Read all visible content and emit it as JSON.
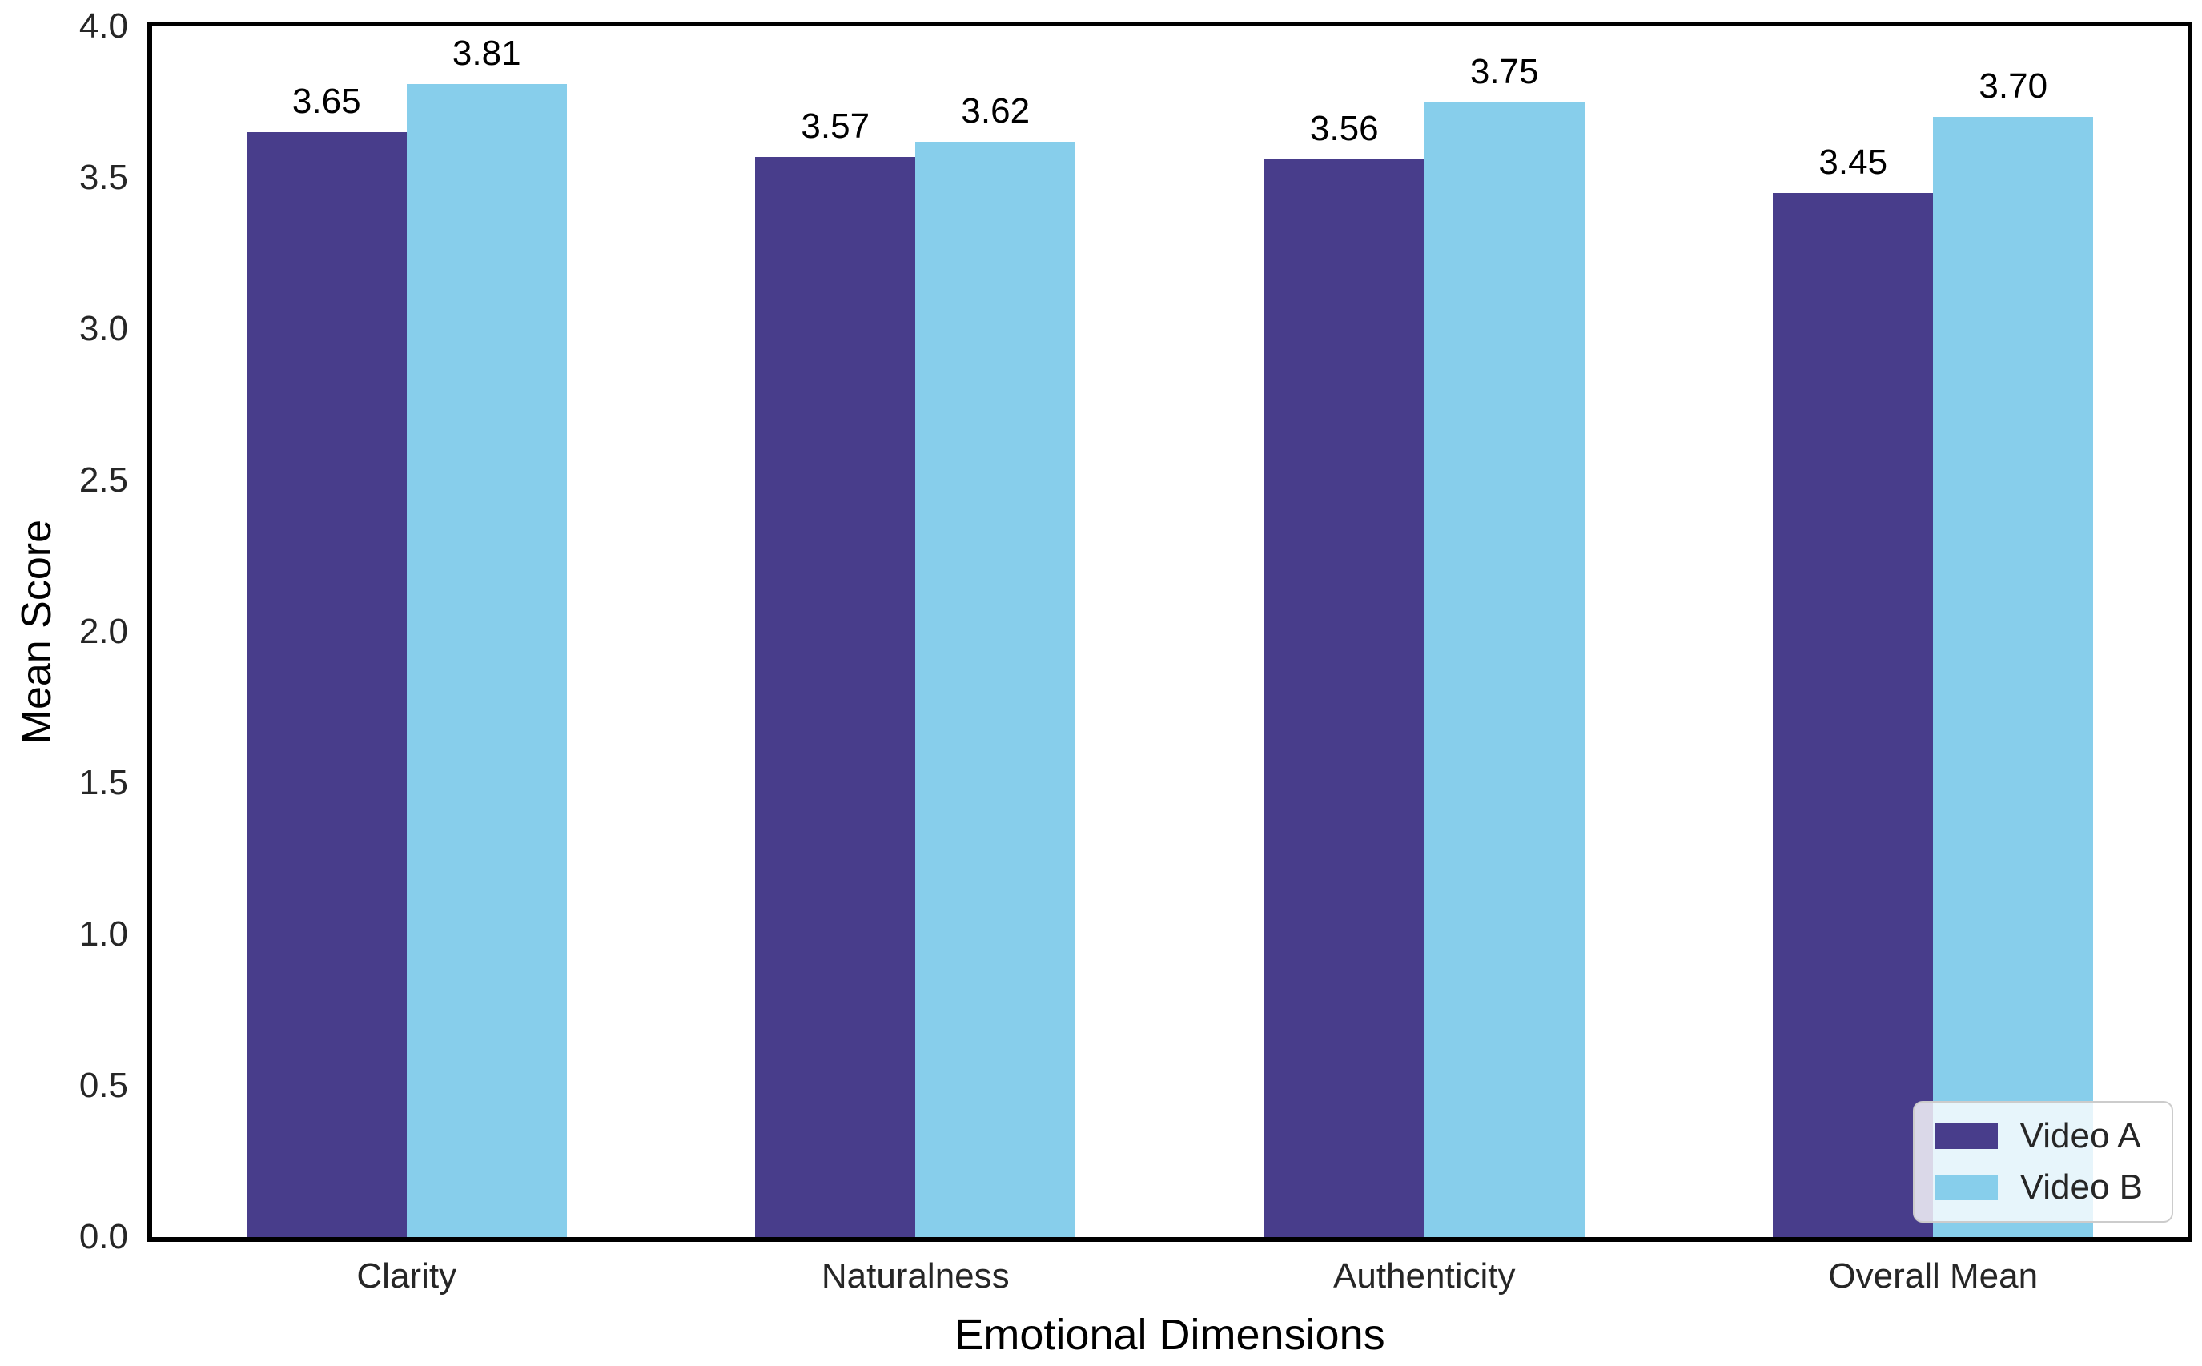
{
  "chart_data": {
    "type": "bar",
    "title": "",
    "xlabel": "Emotional Dimensions",
    "ylabel": "Mean Score",
    "categories": [
      "Clarity",
      "Naturalness",
      "Authenticity",
      "Overall Mean"
    ],
    "series": [
      {
        "name": "Video A",
        "color": "#483D8B",
        "values": [
          3.65,
          3.57,
          3.56,
          3.45
        ],
        "labels": [
          "3.65",
          "3.57",
          "3.56",
          "3.45"
        ]
      },
      {
        "name": "Video B",
        "color": "#87CEEB",
        "values": [
          3.81,
          3.62,
          3.75,
          3.7
        ],
        "labels": [
          "3.81",
          "3.62",
          "3.75",
          "3.70"
        ]
      }
    ],
    "ylim": [
      0.0,
      4.0
    ],
    "ytick_step": 0.5,
    "ytick_labels": [
      "0.0",
      "0.5",
      "1.0",
      "1.5",
      "2.0",
      "2.5",
      "3.0",
      "3.5",
      "4.0"
    ],
    "grid": false,
    "legend_position": "lower right"
  },
  "colors": {
    "video_a": "#483D8B",
    "video_b": "#87CEEB",
    "spine": "#000000",
    "tick_label": "#262626",
    "legend_border": "#cccccc",
    "legend_background": "rgba(255,255,255,0.8)"
  }
}
